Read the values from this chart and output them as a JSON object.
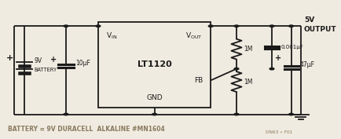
{
  "bg_color": "#f0ebe0",
  "line_color": "#1a1a1a",
  "text_color": "#1a1a1a",
  "label_color": "#8a7a60",
  "figsize": [
    4.35,
    1.77
  ],
  "dpi": 100,
  "ic_label": "LT1120",
  "gnd_label": "GND",
  "fb_label": "FB",
  "output_label": "5V\nOUTPUT",
  "cap1_label": "10μF",
  "cap2_label": "0.001μF",
  "cap3_label": "47μF",
  "res1_label": "1M",
  "res2_label": "1M",
  "bottom_text": "BATTERY = 9V DURACELL  ALKALINE #MN1604",
  "part_ref": "DN63 • F01"
}
